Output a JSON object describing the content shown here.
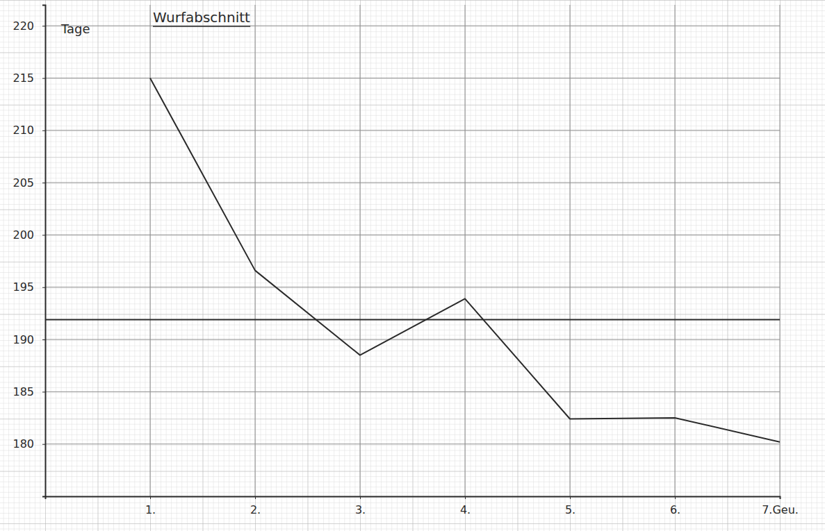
{
  "chart_data": {
    "type": "line",
    "title": "Wurfabschnitt",
    "y_label": "Tage",
    "x": [
      1,
      2,
      3,
      4,
      5,
      6,
      7
    ],
    "values": [
      215,
      196.6,
      188.5,
      193.9,
      182.4,
      182.5,
      180.2
    ],
    "hline": 191.9,
    "color": "#2a2a2a",
    "xlim": [
      0,
      7
    ],
    "xticks": [
      {
        "value": 1,
        "label": "1."
      },
      {
        "value": 2,
        "label": "2."
      },
      {
        "value": 3,
        "label": "3."
      },
      {
        "value": 4,
        "label": "4."
      },
      {
        "value": 5,
        "label": "5."
      },
      {
        "value": 6,
        "label": "6."
      },
      {
        "value": 7,
        "label": "7.Geu."
      }
    ],
    "ylim": [
      175,
      222
    ],
    "yticks": [
      180,
      185,
      190,
      195,
      200,
      205,
      210,
      215,
      220
    ],
    "grid": true
  }
}
